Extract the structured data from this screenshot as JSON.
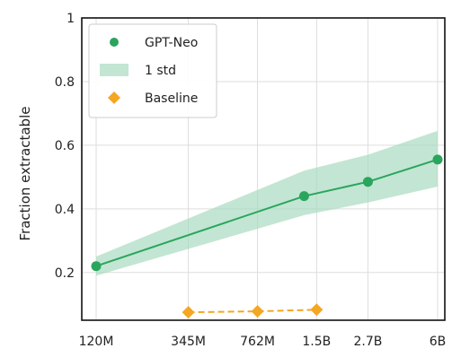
{
  "chart_data": {
    "type": "line",
    "title": "",
    "xlabel": "",
    "ylabel": "Fraction extractable",
    "x_tick_labels": [
      "120M",
      "345M",
      "762M",
      "1.5B",
      "2.7B",
      "6B"
    ],
    "y_tick_labels": [
      "0.2",
      "0.4",
      "0.6",
      "0.8",
      "1"
    ],
    "y_ticks": [
      0.2,
      0.4,
      0.6,
      0.8,
      1.0
    ],
    "ylim": [
      0.05,
      1.0
    ],
    "x_scale": "log",
    "grid": true,
    "legend_position": "top-left",
    "series": [
      {
        "name": "GPT-Neo",
        "type": "line",
        "color": "#2aa55d",
        "marker": "circle",
        "x": [
          "120M",
          "1.3B",
          "2.7B",
          "6B"
        ],
        "values": [
          0.22,
          0.44,
          0.485,
          0.555
        ]
      },
      {
        "name": "1 std",
        "type": "band",
        "color": "#a8dcc0",
        "x": [
          "120M",
          "1.3B",
          "2.7B",
          "6B"
        ],
        "lower": [
          0.19,
          0.38,
          0.42,
          0.47
        ],
        "upper": [
          0.25,
          0.52,
          0.57,
          0.645
        ]
      },
      {
        "name": "Baseline",
        "type": "line",
        "color": "#f5a623",
        "marker": "diamond",
        "linestyle": "dashed",
        "x": [
          "345M",
          "762M",
          "1.5B"
        ],
        "values": [
          0.075,
          0.078,
          0.083
        ]
      }
    ]
  }
}
